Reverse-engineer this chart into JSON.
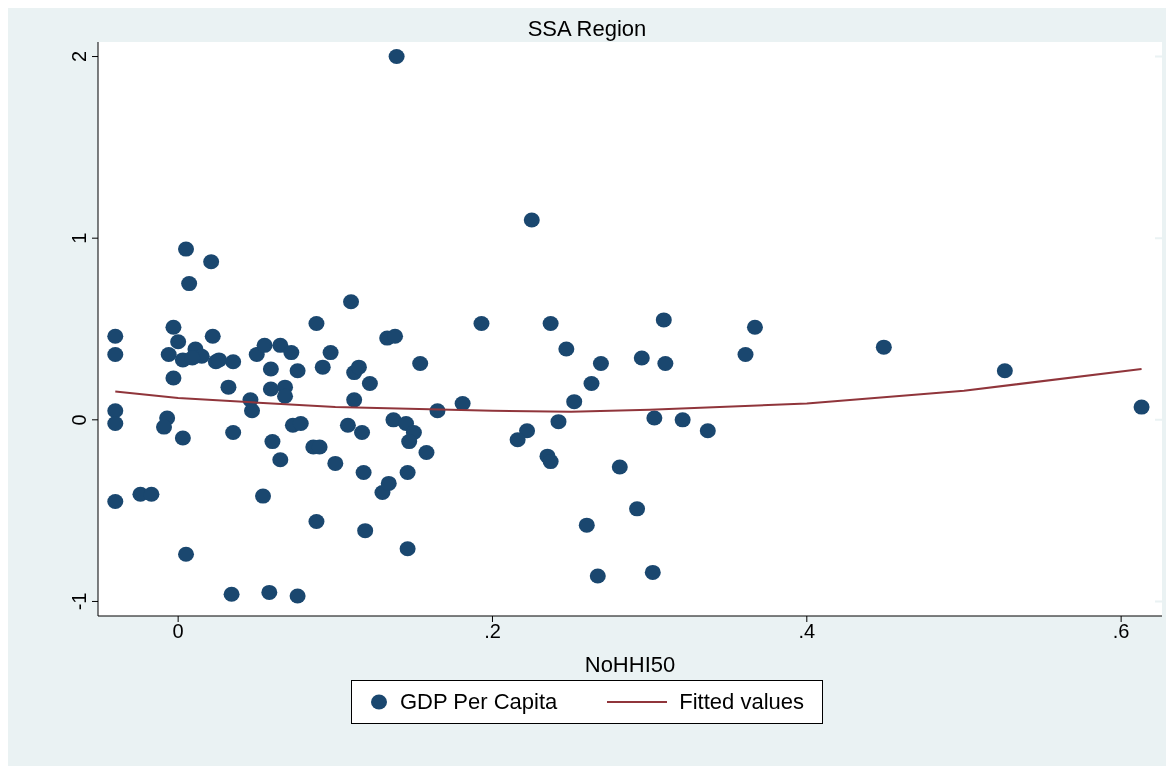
{
  "chart_data": {
    "type": "scatter",
    "title": "SSA Region",
    "xlabel": "NoHHI50",
    "xlim": [
      -0.051,
      0.626
    ],
    "xticks": [
      {
        "value": 0,
        "label": "0"
      },
      {
        "value": 0.2,
        "label": ".2"
      },
      {
        "value": 0.4,
        "label": ".4"
      },
      {
        "value": 0.6,
        "label": ".6"
      }
    ],
    "ylim": [
      -1.08,
      2.08
    ],
    "yticks": [
      {
        "value": -1,
        "label": "-1"
      },
      0,
      1,
      2
    ],
    "grid": "y",
    "legend": "bottom",
    "series": [
      {
        "name": "GDP Per Capita",
        "color": "#1a476f",
        "marker": "circle",
        "x": [
          0.139,
          0.225,
          0.005,
          0.021,
          0.007,
          0.11,
          -0.04,
          -0.003,
          0.088,
          0.193,
          0.237,
          0.309,
          0.367,
          0.449,
          0,
          0.022,
          0.133,
          0.138,
          -0.04,
          -0.006,
          0.011,
          0.015,
          0.003,
          0.009,
          0.024,
          0.026,
          0.035,
          0.05,
          0.055,
          0.065,
          0.072,
          0.097,
          0.059,
          0.076,
          0.092,
          0.112,
          0.115,
          0.122,
          0.154,
          0.247,
          0.269,
          0.31,
          0.295,
          0.361,
          0.526,
          -0.003,
          0.032,
          0.059,
          0.068,
          0.068,
          0.263,
          0.252,
          0.181,
          0.165,
          0.046,
          0.047,
          -0.04,
          0.112,
          0.613,
          -0.04,
          -0.007,
          -0.009,
          0.137,
          0.145,
          0.15,
          0.147,
          0.158,
          0.242,
          0.222,
          0.216,
          0.303,
          0.321,
          0.337,
          0.235,
          0.237,
          0.281,
          0.003,
          0.035,
          0.073,
          0.078,
          0.108,
          0.117,
          0.06,
          0.086,
          0.09,
          0.1,
          0.065,
          0.118,
          0.146,
          0.054,
          0.13,
          0.134,
          -0.04,
          -0.024,
          -0.017,
          0.088,
          0.119,
          0.146,
          0.005,
          0.26,
          0.292,
          0.267,
          0.302,
          0.034,
          0.058,
          0.076
        ],
        "values": [
          2.0,
          1.1,
          0.94,
          0.87,
          0.75,
          0.65,
          0.46,
          0.51,
          0.53,
          0.53,
          0.53,
          0.55,
          0.51,
          0.4,
          0.43,
          0.46,
          0.45,
          0.46,
          0.36,
          0.36,
          0.39,
          0.35,
          0.33,
          0.34,
          0.32,
          0.33,
          0.32,
          0.36,
          0.41,
          0.41,
          0.37,
          0.37,
          0.28,
          0.27,
          0.29,
          0.26,
          0.29,
          0.2,
          0.31,
          0.39,
          0.31,
          0.31,
          0.34,
          0.36,
          0.27,
          0.23,
          0.18,
          0.17,
          0.18,
          0.13,
          0.2,
          0.1,
          0.09,
          0.05,
          0.11,
          0.05,
          0.05,
          0.11,
          0.07,
          -0.02,
          0.01,
          -0.04,
          0.0,
          -0.02,
          -0.07,
          -0.12,
          -0.18,
          -0.01,
          -0.06,
          -0.11,
          0.01,
          0.0,
          -0.06,
          -0.2,
          -0.23,
          -0.26,
          -0.1,
          -0.07,
          -0.03,
          -0.02,
          -0.03,
          -0.07,
          -0.12,
          -0.15,
          -0.15,
          -0.24,
          -0.22,
          -0.29,
          -0.29,
          -0.42,
          -0.4,
          -0.35,
          -0.45,
          -0.41,
          -0.41,
          -0.56,
          -0.61,
          -0.71,
          -0.74,
          -0.58,
          -0.49,
          -0.86,
          -0.84,
          -0.96,
          -0.95,
          -0.97
        ]
      },
      {
        "name": "Fitted values",
        "type": "line",
        "color": "#90353b",
        "marker": "none",
        "line_style": "solid",
        "x": [
          -0.04,
          0.0,
          0.1,
          0.2,
          0.25,
          0.3,
          0.4,
          0.5,
          0.613
        ],
        "values": [
          0.156,
          0.12,
          0.07,
          0.05,
          0.045,
          0.055,
          0.09,
          0.16,
          0.28
        ]
      }
    ]
  }
}
